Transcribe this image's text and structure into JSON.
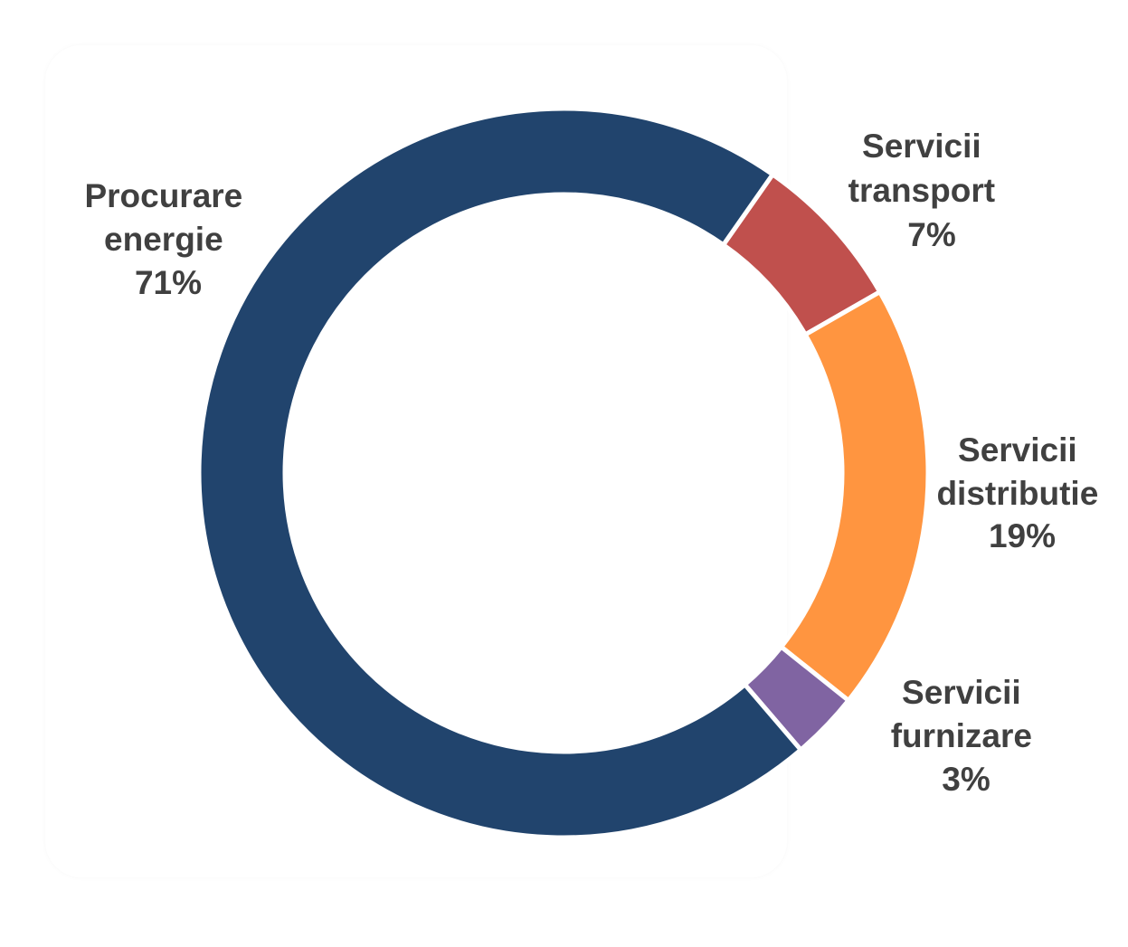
{
  "chart_data": {
    "type": "pie",
    "title": "",
    "donut": true,
    "legend": "none",
    "slices": [
      {
        "label_line1": "Servicii",
        "label_line2": "transport",
        "value": 7,
        "value_label": "7%",
        "color": "#C0504D"
      },
      {
        "label_line1": "Servicii",
        "label_line2": "distributie",
        "value": 19,
        "value_label": "19%",
        "color": "#FF9540"
      },
      {
        "label_line1": "Servicii",
        "label_line2": "furnizare",
        "value": 3,
        "value_label": "3%",
        "color": "#8064A2"
      },
      {
        "label_line1": "Procurare",
        "label_line2": "energie",
        "value": 71,
        "value_label": "71%",
        "color": "#21446D"
      }
    ]
  }
}
